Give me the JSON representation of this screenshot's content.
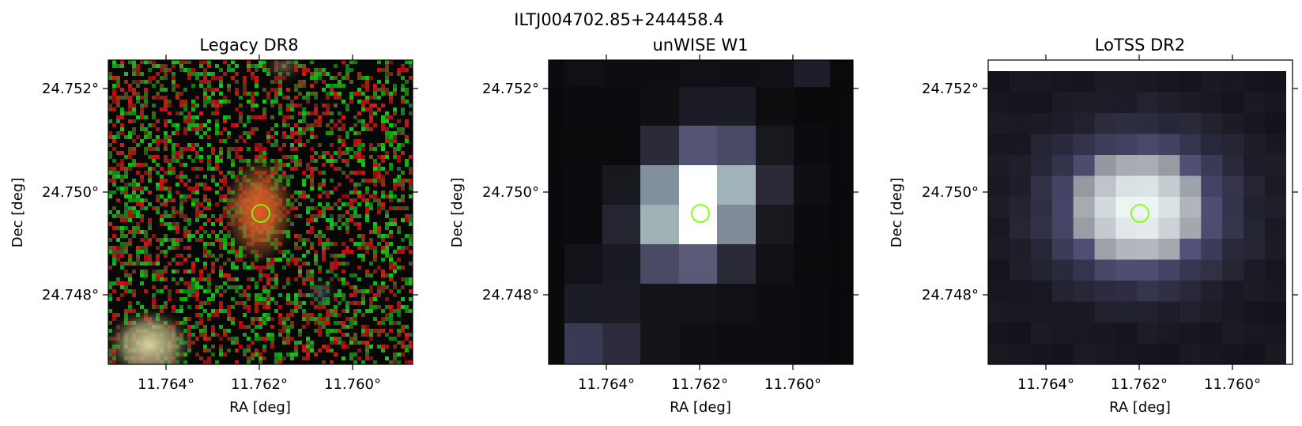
{
  "figure": {
    "title": "ILTJ004702.85+244458.4",
    "marker_color": "#7fff00"
  },
  "panels": [
    {
      "id": "legacy",
      "title": "Legacy DR8",
      "xlabel": "RA [deg]",
      "ylabel": "Dec [deg]",
      "xticks": [
        "11.764°",
        "11.762°",
        "11.760°"
      ],
      "yticks": [
        "24.752°",
        "24.750°",
        "24.748°"
      ],
      "image": "rgb optical cutout with orange extended source at center, yellowish source bottom-left"
    },
    {
      "id": "unwise",
      "title": "unWISE W1",
      "xlabel": "RA [deg]",
      "ylabel": "Dec [deg]",
      "xticks": [
        "11.764°",
        "11.762°",
        "11.760°"
      ],
      "yticks": [
        "24.752°",
        "24.750°",
        "24.748°"
      ],
      "image": "coarse grayscale pixels, bright source at center"
    },
    {
      "id": "lotss",
      "title": "LoTSS DR2",
      "xlabel": "RA [deg]",
      "ylabel": "Dec [deg]",
      "xticks": [
        "11.764°",
        "11.762°",
        "11.760°"
      ],
      "yticks": [
        "24.752°",
        "24.750°",
        "24.748°"
      ],
      "image": "grayscale radio cutout, extended bright source at center"
    }
  ]
}
